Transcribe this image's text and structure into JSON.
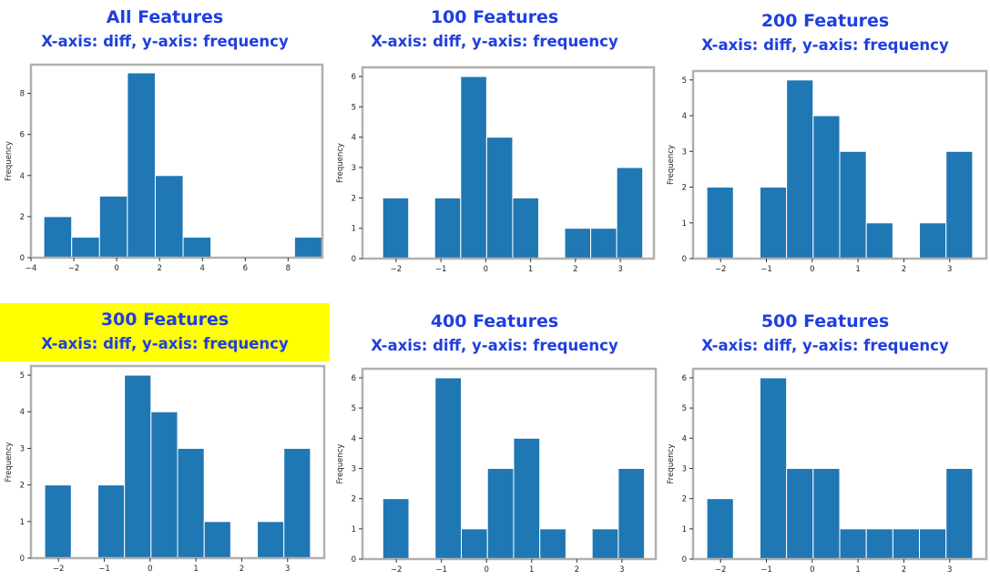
{
  "colors": {
    "bar": "#1f77b4",
    "title": "#1f3fe0",
    "highlight": "#ffff00",
    "frame": "#b0b0b0"
  },
  "chart_data": [
    {
      "type": "bar",
      "title": "All Features",
      "subtitle": "X-axis: diff, y-axis: frequency",
      "ylabel": "Frequency",
      "highlighted": false,
      "xlim": [
        -4,
        9.6
      ],
      "ylim": [
        0,
        9.4
      ],
      "xticks": [
        -4,
        -2,
        0,
        2,
        4,
        6,
        8
      ],
      "yticks": [
        0,
        2,
        4,
        6,
        8
      ],
      "bins": [
        {
          "x0": -3.4,
          "x1": -2.1,
          "y": 2
        },
        {
          "x0": -2.1,
          "x1": -0.8,
          "y": 1
        },
        {
          "x0": -0.8,
          "x1": 0.5,
          "y": 3
        },
        {
          "x0": 0.5,
          "x1": 1.8,
          "y": 9
        },
        {
          "x0": 1.8,
          "x1": 3.1,
          "y": 4
        },
        {
          "x0": 3.1,
          "x1": 4.4,
          "y": 1
        },
        {
          "x0": 4.4,
          "x1": 5.7,
          "y": 0
        },
        {
          "x0": 5.7,
          "x1": 7.0,
          "y": 0
        },
        {
          "x0": 7.0,
          "x1": 8.3,
          "y": 0
        },
        {
          "x0": 8.3,
          "x1": 9.6,
          "y": 1
        }
      ]
    },
    {
      "type": "bar",
      "title": "100 Features",
      "subtitle": "X-axis: diff, y-axis: frequency",
      "ylabel": "Frequency",
      "highlighted": false,
      "xlim": [
        -2.75,
        3.75
      ],
      "ylim": [
        0,
        6.3
      ],
      "xticks": [
        -2,
        -1,
        0,
        1,
        2,
        3
      ],
      "yticks": [
        0,
        1,
        2,
        3,
        4,
        5,
        6
      ],
      "bins": [
        {
          "x0": -2.3,
          "x1": -1.72,
          "y": 2
        },
        {
          "x0": -1.72,
          "x1": -1.14,
          "y": 0
        },
        {
          "x0": -1.14,
          "x1": -0.56,
          "y": 2
        },
        {
          "x0": -0.56,
          "x1": 0.02,
          "y": 6
        },
        {
          "x0": 0.02,
          "x1": 0.6,
          "y": 4
        },
        {
          "x0": 0.6,
          "x1": 1.18,
          "y": 2
        },
        {
          "x0": 1.18,
          "x1": 1.76,
          "y": 0
        },
        {
          "x0": 1.76,
          "x1": 2.34,
          "y": 1
        },
        {
          "x0": 2.34,
          "x1": 2.92,
          "y": 1
        },
        {
          "x0": 2.92,
          "x1": 3.5,
          "y": 3
        }
      ]
    },
    {
      "type": "bar",
      "title": "200 Features",
      "subtitle": "X-axis: diff, y-axis: frequency",
      "ylabel": "Frequency",
      "highlighted": false,
      "xlim": [
        -2.6,
        3.8
      ],
      "ylim": [
        0,
        5.25
      ],
      "xticks": [
        -2,
        -1,
        0,
        1,
        2,
        3
      ],
      "yticks": [
        0,
        1,
        2,
        3,
        4,
        5
      ],
      "bins": [
        {
          "x0": -2.3,
          "x1": -1.72,
          "y": 2
        },
        {
          "x0": -1.72,
          "x1": -1.14,
          "y": 0
        },
        {
          "x0": -1.14,
          "x1": -0.56,
          "y": 2
        },
        {
          "x0": -0.56,
          "x1": 0.02,
          "y": 5
        },
        {
          "x0": 0.02,
          "x1": 0.6,
          "y": 4
        },
        {
          "x0": 0.6,
          "x1": 1.18,
          "y": 3
        },
        {
          "x0": 1.18,
          "x1": 1.76,
          "y": 1
        },
        {
          "x0": 1.76,
          "x1": 2.34,
          "y": 0
        },
        {
          "x0": 2.34,
          "x1": 2.92,
          "y": 1
        },
        {
          "x0": 2.92,
          "x1": 3.5,
          "y": 3
        }
      ]
    },
    {
      "type": "bar",
      "title": "300 Features",
      "subtitle": "X-axis: diff, y-axis: frequency",
      "ylabel": "Frequency",
      "highlighted": true,
      "xlim": [
        -2.6,
        3.8
      ],
      "ylim": [
        0,
        5.25
      ],
      "xticks": [
        -2,
        -1,
        0,
        1,
        2,
        3
      ],
      "yticks": [
        0,
        1,
        2,
        3,
        4,
        5
      ],
      "bins": [
        {
          "x0": -2.3,
          "x1": -1.72,
          "y": 2
        },
        {
          "x0": -1.72,
          "x1": -1.14,
          "y": 0
        },
        {
          "x0": -1.14,
          "x1": -0.56,
          "y": 2
        },
        {
          "x0": -0.56,
          "x1": 0.02,
          "y": 5
        },
        {
          "x0": 0.02,
          "x1": 0.6,
          "y": 4
        },
        {
          "x0": 0.6,
          "x1": 1.18,
          "y": 3
        },
        {
          "x0": 1.18,
          "x1": 1.76,
          "y": 1
        },
        {
          "x0": 1.76,
          "x1": 2.34,
          "y": 0
        },
        {
          "x0": 2.34,
          "x1": 2.92,
          "y": 1
        },
        {
          "x0": 2.92,
          "x1": 3.5,
          "y": 3
        }
      ]
    },
    {
      "type": "bar",
      "title": "400 Features",
      "subtitle": "X-axis: diff, y-axis: frequency",
      "ylabel": "Frequency",
      "highlighted": false,
      "xlim": [
        -2.75,
        3.75
      ],
      "ylim": [
        0,
        6.3
      ],
      "xticks": [
        -2,
        -1,
        0,
        1,
        2,
        3
      ],
      "yticks": [
        0,
        1,
        2,
        3,
        4,
        5,
        6
      ],
      "bins": [
        {
          "x0": -2.3,
          "x1": -1.72,
          "y": 2
        },
        {
          "x0": -1.72,
          "x1": -1.14,
          "y": 0
        },
        {
          "x0": -1.14,
          "x1": -0.56,
          "y": 6
        },
        {
          "x0": -0.56,
          "x1": 0.02,
          "y": 1
        },
        {
          "x0": 0.02,
          "x1": 0.6,
          "y": 3
        },
        {
          "x0": 0.6,
          "x1": 1.18,
          "y": 4
        },
        {
          "x0": 1.18,
          "x1": 1.76,
          "y": 1
        },
        {
          "x0": 1.76,
          "x1": 2.34,
          "y": 0
        },
        {
          "x0": 2.34,
          "x1": 2.92,
          "y": 1
        },
        {
          "x0": 2.92,
          "x1": 3.5,
          "y": 3
        }
      ]
    },
    {
      "type": "bar",
      "title": "500 Features",
      "subtitle": "X-axis: diff, y-axis: frequency",
      "ylabel": "Frequency",
      "highlighted": false,
      "xlim": [
        -2.6,
        3.8
      ],
      "ylim": [
        0,
        6.3
      ],
      "xticks": [
        -2,
        -1,
        0,
        1,
        2,
        3
      ],
      "yticks": [
        0,
        1,
        2,
        3,
        4,
        5,
        6
      ],
      "bins": [
        {
          "x0": -2.3,
          "x1": -1.72,
          "y": 2
        },
        {
          "x0": -1.72,
          "x1": -1.14,
          "y": 0
        },
        {
          "x0": -1.14,
          "x1": -0.56,
          "y": 6
        },
        {
          "x0": -0.56,
          "x1": 0.02,
          "y": 3
        },
        {
          "x0": 0.02,
          "x1": 0.6,
          "y": 3
        },
        {
          "x0": 0.6,
          "x1": 1.18,
          "y": 1
        },
        {
          "x0": 1.18,
          "x1": 1.76,
          "y": 1
        },
        {
          "x0": 1.76,
          "x1": 2.34,
          "y": 1
        },
        {
          "x0": 2.34,
          "x1": 2.92,
          "y": 1
        },
        {
          "x0": 2.92,
          "x1": 3.5,
          "y": 3
        }
      ]
    }
  ]
}
